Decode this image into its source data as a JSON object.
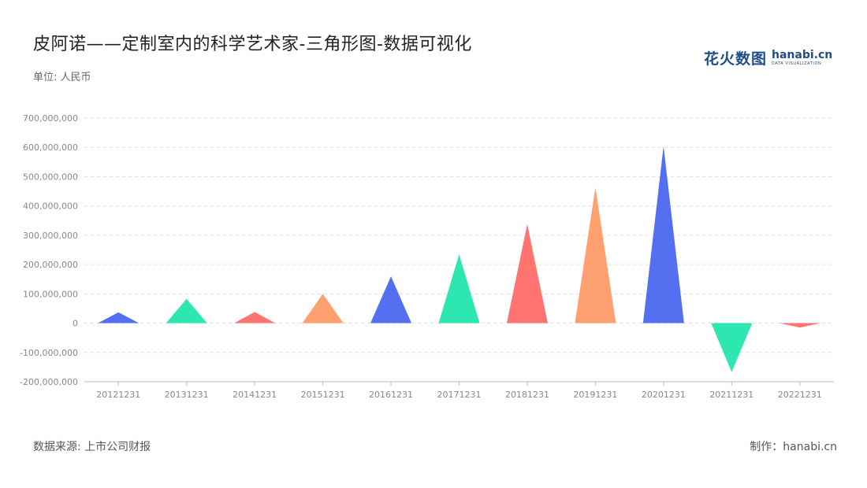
{
  "header": {
    "title": "皮阿诺——定制室内的科学艺术家-三角形图-数据可视化",
    "unit": "单位: 人民币"
  },
  "brand": {
    "cn": "花火数图",
    "en": "hanabi.cn",
    "en_sub": "DATA VISUALIZATION",
    "color": "#1f4d8a"
  },
  "footer": {
    "source": "数据来源: 上市公司财报",
    "credit": "制作：hanabi.cn"
  },
  "colors": [
    "#5470f0",
    "#2ee6b0",
    "#ff7370",
    "#ffa070"
  ],
  "chart_data": {
    "type": "bar",
    "mark_shape": "triangle",
    "categories": [
      "20121231",
      "20131231",
      "20141231",
      "20151231",
      "20161231",
      "20171231",
      "20181231",
      "20191231",
      "20201231",
      "20211231",
      "20221231"
    ],
    "values": [
      37000000,
      83000000,
      38000000,
      100000000,
      160000000,
      235000000,
      338000000,
      463000000,
      604000000,
      -167000000,
      -15000000
    ],
    "ylim": [
      -200000000,
      700000000
    ],
    "yticks": [
      -200000000,
      -100000000,
      0,
      100000000,
      200000000,
      300000000,
      400000000,
      500000000,
      600000000,
      700000000
    ],
    "ytick_labels": [
      "-200,000,000",
      "-100,000,000",
      "0",
      "100,000,000",
      "200,000,000",
      "300,000,000",
      "400,000,000",
      "500,000,000",
      "600,000,000",
      "700,000,000"
    ],
    "grid": true
  }
}
